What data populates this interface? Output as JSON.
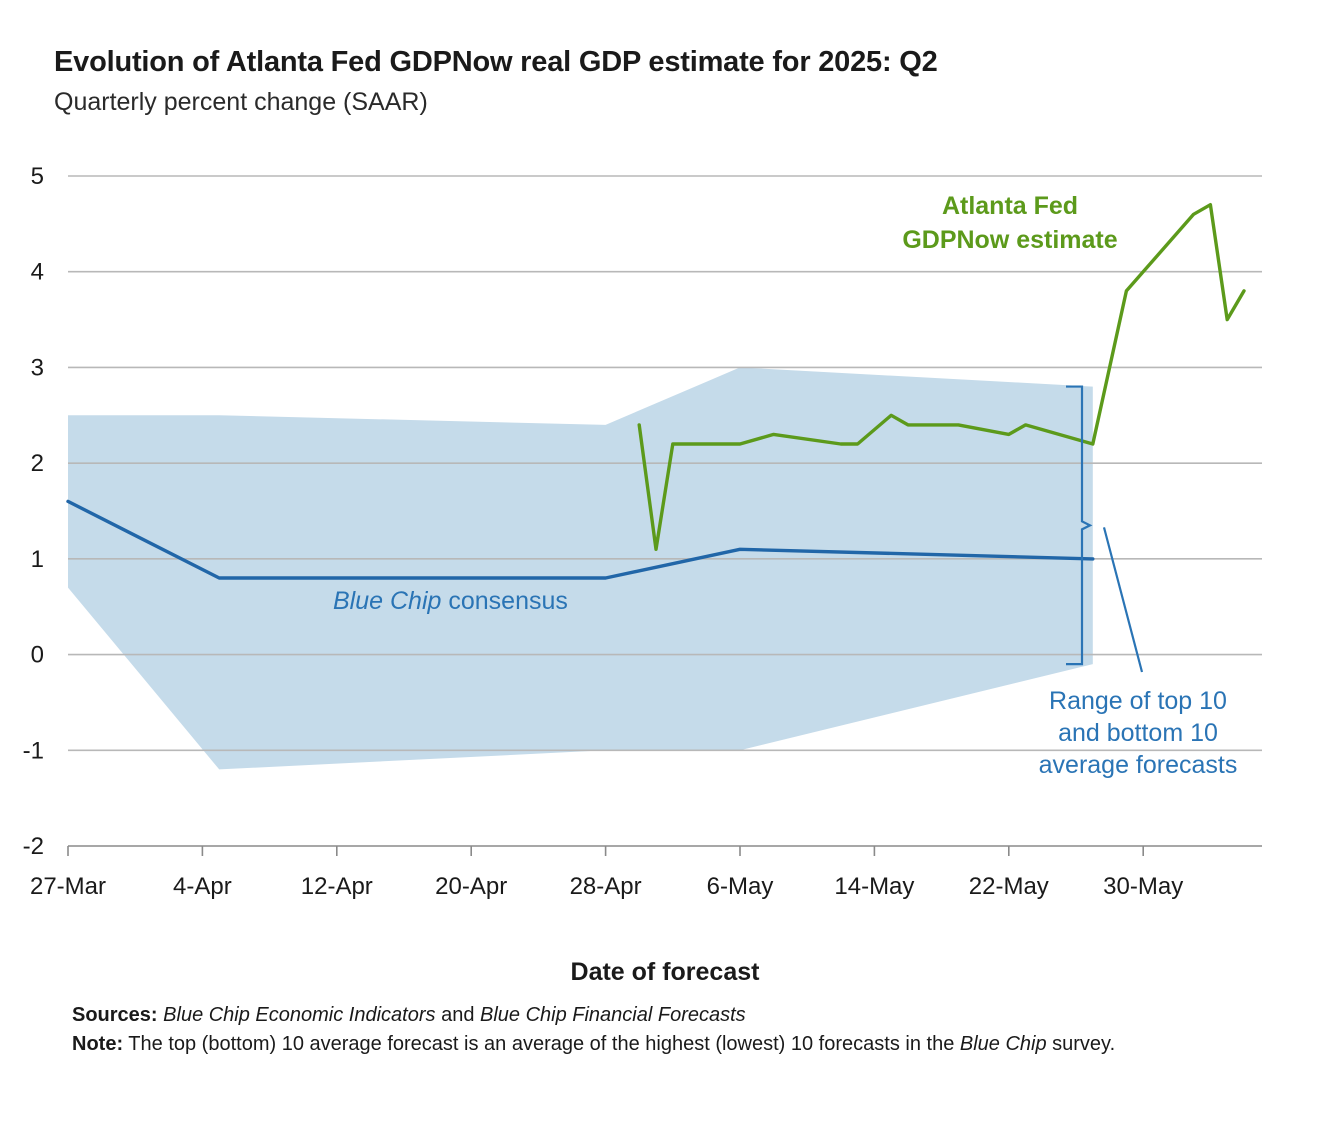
{
  "chart_data": {
    "type": "line",
    "title": "Evolution of Atlanta Fed GDPNow real GDP estimate for 2025: Q2",
    "subtitle": "Quarterly percent change (SAAR)",
    "xlabel": "Date of forecast",
    "ylabel": "",
    "ylim": [
      -2,
      5
    ],
    "yticks": [
      "5",
      "4",
      "3",
      "2",
      "1",
      "0",
      "-1",
      "-2"
    ],
    "xticks": [
      "27-Mar",
      "4-Apr",
      "12-Apr",
      "20-Apr",
      "28-Apr",
      "6-May",
      "14-May",
      "22-May",
      "30-May"
    ],
    "grid": true,
    "series": [
      {
        "name": "Atlanta Fed GDPNow estimate",
        "color": "#5c9a1b",
        "points": [
          [
            "2025-04-30",
            2.4
          ],
          [
            "2025-05-01",
            1.1
          ],
          [
            "2025-05-02",
            2.2
          ],
          [
            "2025-05-06",
            2.2
          ],
          [
            "2025-05-08",
            2.3
          ],
          [
            "2025-05-12",
            2.2
          ],
          [
            "2025-05-13",
            2.2
          ],
          [
            "2025-05-15",
            2.5
          ],
          [
            "2025-05-16",
            2.4
          ],
          [
            "2025-05-19",
            2.4
          ],
          [
            "2025-05-22",
            2.3
          ],
          [
            "2025-05-23",
            2.4
          ],
          [
            "2025-05-27",
            2.2
          ],
          [
            "2025-05-29",
            3.8
          ],
          [
            "2025-06-02",
            4.6
          ],
          [
            "2025-06-03",
            4.7
          ],
          [
            "2025-06-04",
            3.5
          ],
          [
            "2025-06-05",
            3.8
          ]
        ]
      },
      {
        "name": "Blue Chip consensus",
        "color": "#2166a8",
        "points": [
          [
            "2025-03-27",
            1.6
          ],
          [
            "2025-04-05",
            0.8
          ],
          [
            "2025-04-28",
            0.8
          ],
          [
            "2025-05-06",
            1.1
          ],
          [
            "2025-05-27",
            1.0
          ]
        ]
      }
    ],
    "range_band": {
      "name": "Range of top 10 and bottom 10 average forecasts",
      "color": "#c5dbea",
      "upper": [
        [
          "2025-03-27",
          2.5
        ],
        [
          "2025-04-05",
          2.5
        ],
        [
          "2025-04-28",
          2.4
        ],
        [
          "2025-05-06",
          3.0
        ],
        [
          "2025-05-27",
          2.8
        ]
      ],
      "lower": [
        [
          "2025-03-27",
          0.7
        ],
        [
          "2025-04-05",
          -1.2
        ],
        [
          "2025-04-28",
          -1.0
        ],
        [
          "2025-05-06",
          -1.0
        ],
        [
          "2025-05-27",
          -0.1
        ]
      ]
    },
    "annotations": {
      "gdpnow_line1": "Atlanta Fed",
      "gdpnow_line2": "GDPNow estimate",
      "consensus_italic": "Blue Chip",
      "consensus_rest": " consensus",
      "range_line1": "Range of top 10",
      "range_line2": "and bottom 10",
      "range_line3": "average forecasts"
    }
  },
  "sources": {
    "label": "Sources:",
    "part1": "Blue Chip Economic Indicators",
    "part2": " and ",
    "part3": "Blue Chip Financial Forecasts"
  },
  "note": {
    "label": "Note:",
    "text": " The top (bottom) 10 average forecast is an average of the highest (lowest) 10 forecasts in the ",
    "italic": "Blue Chip",
    "end": " survey."
  }
}
